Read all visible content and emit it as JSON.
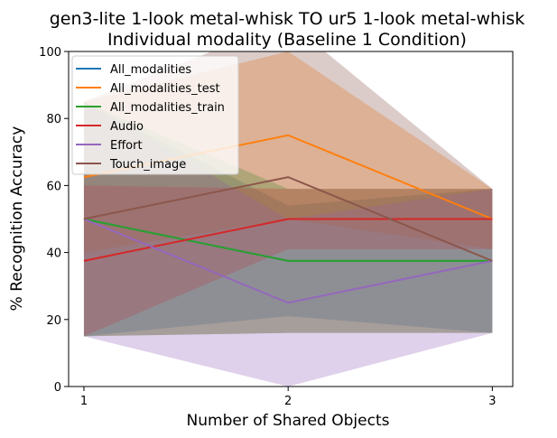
{
  "chart_data": {
    "type": "line",
    "title_line1": "gen3-lite 1-look metal-whisk TO ur5 1-look metal-whisk",
    "title_line2": "Individual modality (Baseline 1 Condition)",
    "xlabel": "Number of Shared Objects",
    "ylabel": "% Recognition Accuracy",
    "x": [
      1,
      2,
      3
    ],
    "xlim": [
      0.925,
      3.1
    ],
    "ylim": [
      0,
      100
    ],
    "yticks": [
      0,
      20,
      40,
      60,
      80,
      100
    ],
    "xticks": [
      1,
      2,
      3
    ],
    "legend_position": "upper-left",
    "series": [
      {
        "name": "All_modalities",
        "color": "#1f77b4",
        "values": [
          50,
          37.5,
          37.5
        ],
        "band_low": [
          15,
          21,
          16
        ],
        "band_high": [
          85,
          54,
          59
        ]
      },
      {
        "name": "All_modalities_test",
        "color": "#ff7f0e",
        "values": [
          62.5,
          75,
          50
        ],
        "band_low": [
          40,
          50,
          41
        ],
        "band_high": [
          85,
          100,
          59
        ]
      },
      {
        "name": "All_modalities_train",
        "color": "#2ca02c",
        "values": [
          50,
          37.5,
          37.5
        ],
        "band_low": [
          15,
          16,
          16
        ],
        "band_high": [
          85,
          59,
          59
        ]
      },
      {
        "name": "Audio",
        "color": "#d62728",
        "values": [
          37.5,
          50,
          50
        ],
        "band_low": [
          15,
          41,
          41
        ],
        "band_high": [
          60,
          59,
          59
        ]
      },
      {
        "name": "Effort",
        "color": "#9467bd",
        "values": [
          50,
          25,
          37.5
        ],
        "band_low": [
          15,
          0,
          16
        ],
        "band_high": [
          85,
          50,
          59
        ]
      },
      {
        "name": "Touch_image",
        "color": "#8c564b",
        "values": [
          50,
          62.5,
          37.5
        ],
        "band_low": [
          15,
          16,
          16
        ],
        "band_high": [
          85,
          109,
          59
        ]
      }
    ]
  }
}
